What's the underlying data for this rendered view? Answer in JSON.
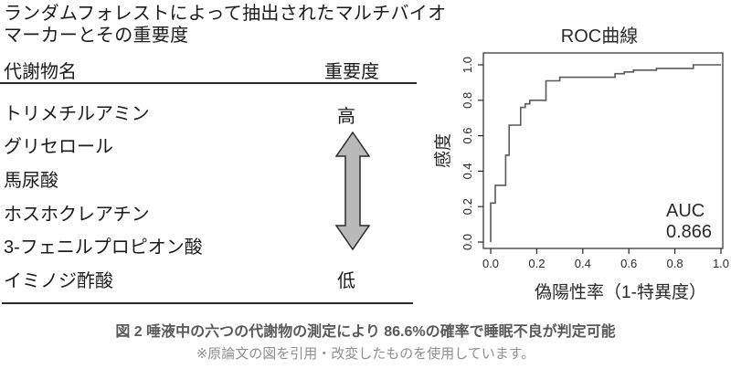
{
  "left_panel": {
    "title_lines": [
      "ランダムフォレストによって抽出されたマルチバイオ",
      "マーカーとその重要度"
    ],
    "table": {
      "header_metabolite": "代謝物名",
      "header_importance": "重要度",
      "metabolites": [
        "トリメチルアミン",
        "グリセロール",
        "馬尿酸",
        "ホスホクレアチン",
        "3-フェニルプロピオン酸",
        "イミノジ酢酸"
      ],
      "importance_high": "高",
      "importance_low": "低"
    },
    "arrow": {
      "direction": "double-vertical",
      "fill": "#b9b9b9",
      "stroke": "#2b2b2b"
    }
  },
  "chart_data": {
    "type": "line",
    "title": "ROC曲線",
    "xlabel": "偽陽性率（1-特異度）",
    "ylabel": "感度",
    "xlim": [
      0.0,
      1.0
    ],
    "ylim": [
      0.0,
      1.0
    ],
    "xticks": [
      "0.0",
      "0.2",
      "0.4",
      "0.6",
      "0.8",
      "1.0"
    ],
    "yticks": [
      "0.0",
      "0.2",
      "0.4",
      "0.6",
      "0.8",
      "1.0"
    ],
    "grid": false,
    "legend": "none",
    "line_color": "#5a5a5a",
    "series": [
      {
        "name": "ROC",
        "points": [
          [
            0.0,
            0.0
          ],
          [
            0.0,
            0.22
          ],
          [
            0.02,
            0.22
          ],
          [
            0.02,
            0.32
          ],
          [
            0.065,
            0.32
          ],
          [
            0.065,
            0.49
          ],
          [
            0.08,
            0.49
          ],
          [
            0.08,
            0.66
          ],
          [
            0.13,
            0.66
          ],
          [
            0.13,
            0.76
          ],
          [
            0.15,
            0.76
          ],
          [
            0.15,
            0.78
          ],
          [
            0.17,
            0.78
          ],
          [
            0.17,
            0.8
          ],
          [
            0.24,
            0.8
          ],
          [
            0.24,
            0.91
          ],
          [
            0.3,
            0.91
          ],
          [
            0.3,
            0.93
          ],
          [
            0.54,
            0.93
          ],
          [
            0.54,
            0.95
          ],
          [
            0.58,
            0.95
          ],
          [
            0.58,
            0.96
          ],
          [
            0.62,
            0.96
          ],
          [
            0.62,
            0.97
          ],
          [
            0.72,
            0.97
          ],
          [
            0.72,
            0.98
          ],
          [
            0.88,
            0.98
          ],
          [
            0.88,
            1.0
          ],
          [
            1.0,
            1.0
          ]
        ]
      }
    ],
    "annotation": {
      "auc_label": "AUC",
      "auc_value": "0.866"
    }
  },
  "caption": {
    "title": "図 2 唾液中の六つの代謝物の測定により 86.6%の確率で睡眠不良が判定可能",
    "note": "※原論文の図を引用・改変したものを使用しています。"
  }
}
